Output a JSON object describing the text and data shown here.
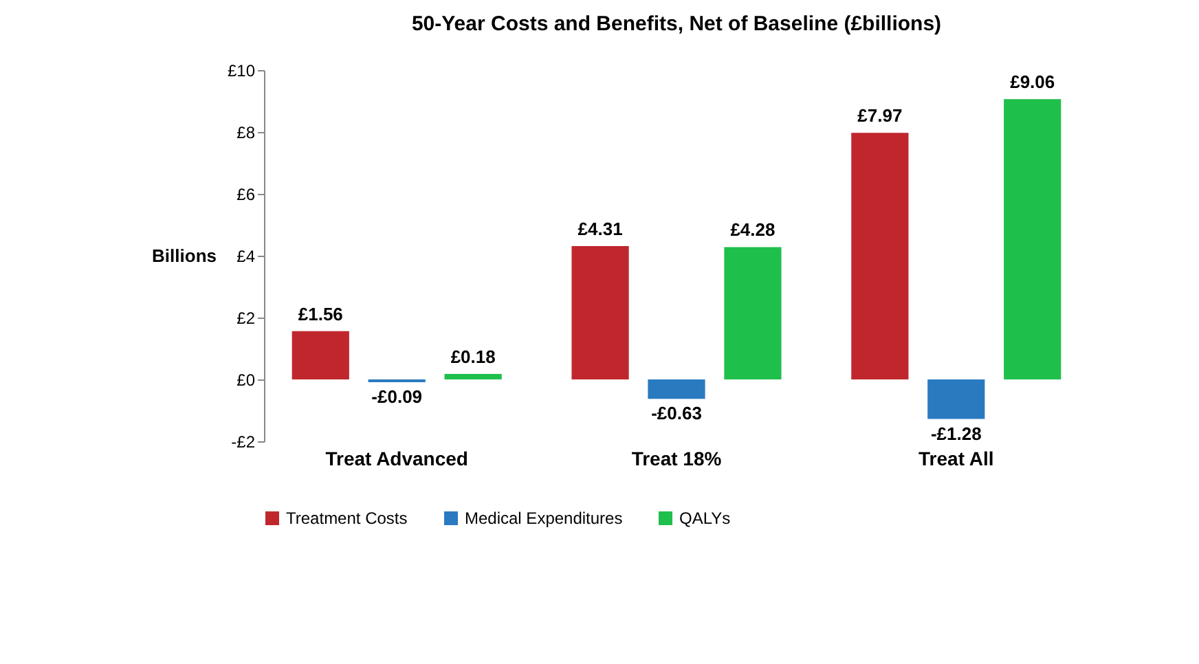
{
  "chart_data": {
    "type": "bar",
    "title": "50-Year Costs and Benefits, Net of Baseline (£billions)",
    "ylabel": "Billions",
    "categories": [
      "Treat Advanced",
      "Treat 18%",
      "Treat All"
    ],
    "series": [
      {
        "name": "Treatment Costs",
        "color": "#c0272d",
        "values": [
          1.56,
          4.31,
          7.97
        ],
        "value_labels": [
          "£1.56",
          "£4.31",
          "£7.97"
        ]
      },
      {
        "name": "Medical Expenditures",
        "color": "#2a7ac0",
        "values": [
          -0.09,
          -0.63,
          -1.28
        ],
        "value_labels": [
          "-£0.09",
          "-£0.63",
          "-£1.28"
        ]
      },
      {
        "name": "QALYs",
        "color": "#1fbf4c",
        "values": [
          0.18,
          4.28,
          9.06
        ],
        "value_labels": [
          "£0.18",
          "£4.28",
          "£9.06"
        ]
      }
    ],
    "ylim": [
      -2,
      10
    ],
    "yticks": [
      {
        "value": -2,
        "label": "-£2"
      },
      {
        "value": 0,
        "label": "£0"
      },
      {
        "value": 2,
        "label": "£2"
      },
      {
        "value": 4,
        "label": "£4"
      },
      {
        "value": 6,
        "label": "£6"
      },
      {
        "value": 8,
        "label": "£8"
      },
      {
        "value": 10,
        "label": "£10"
      }
    ],
    "grid": false,
    "legend": "bottom"
  }
}
